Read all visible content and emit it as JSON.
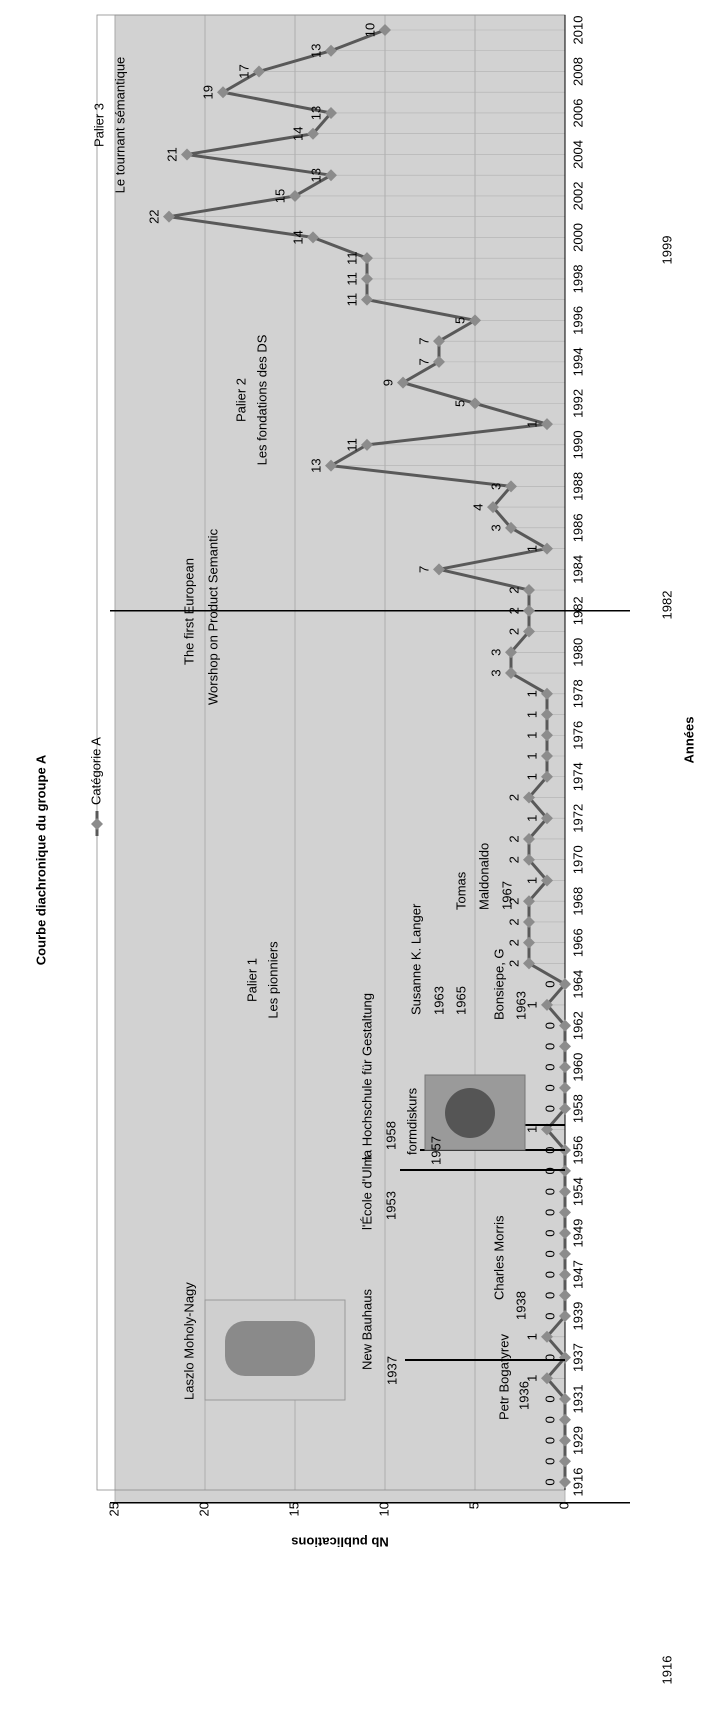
{
  "chart_data": {
    "type": "line",
    "title": "Courbe diachronique du groupe A",
    "xlabel": "Années",
    "ylabel": "Nb publications",
    "categories": [
      1916,
      null,
      1929,
      null,
      1931,
      null,
      1937,
      null,
      1939,
      null,
      1947,
      null,
      1949,
      null,
      1954,
      null,
      1956,
      null,
      1958,
      null,
      1960,
      null,
      1962,
      null,
      1964,
      null,
      1966,
      null,
      1968,
      null,
      1970,
      null,
      1972,
      null,
      1974,
      null,
      1976,
      null,
      1978,
      null,
      1980,
      null,
      1982,
      null,
      1984,
      null,
      1986,
      null,
      1988,
      null,
      1990,
      null,
      1992,
      null,
      1994,
      null,
      1996,
      null,
      1998,
      null,
      2000,
      null,
      2002,
      null,
      2004,
      null,
      2006,
      null,
      2008,
      null,
      2010
    ],
    "series": [
      {
        "name": "Catégorie A",
        "color": "#595959",
        "marker_color": "#8c8c8c",
        "values": [
          0,
          0,
          0,
          0,
          0,
          1,
          0,
          1,
          0,
          0,
          0,
          0,
          0,
          0,
          0,
          0,
          0,
          1,
          0,
          0,
          0,
          0,
          0,
          1,
          0,
          2,
          2,
          2,
          2,
          1,
          2,
          2,
          1,
          2,
          1,
          1,
          1,
          1,
          1,
          3,
          3,
          2,
          2,
          2,
          7,
          1,
          3,
          4,
          3,
          13,
          11,
          1,
          5,
          9,
          7,
          7,
          5,
          11,
          11,
          11,
          14,
          22,
          15,
          13,
          21,
          14,
          13,
          19,
          17,
          13,
          10
        ]
      }
    ],
    "ylim": [
      0,
      25
    ],
    "yticks": [
      0,
      5,
      10,
      15,
      20,
      25
    ],
    "grid": true,
    "milestones": [
      "1916",
      "1982",
      "1999"
    ],
    "periods": [
      {
        "title": "Palier 1",
        "subtitle": "Les pionniers",
        "ymax": 12,
        "color": "#f2f2f2"
      },
      {
        "title": "Palier 2",
        "subtitle": "Les fondations des DS",
        "ymax": 15,
        "color": "#dcdcdc"
      },
      {
        "title": "Palier 3",
        "subtitle": "Le tournant sémantique",
        "ymax": 25,
        "color": "#d2d2d2"
      }
    ],
    "annotations": [
      "Laszlo Moholy-Nagy",
      "New Bauhaus",
      "1937",
      "Petr Bogatyrev",
      "1936",
      "Charles Morris",
      "1938",
      "l'École d'Ulm",
      "1953",
      "la Hochschule für Gestaltung",
      "1958",
      "formdiskurs",
      "1957",
      "Bonsiepe, G",
      "1963",
      "Susanne K. Langer",
      "1963",
      "1965",
      "Tomas",
      "Maldonaldo",
      "1967",
      "The first European",
      "Worshop on Product Semantic"
    ]
  }
}
